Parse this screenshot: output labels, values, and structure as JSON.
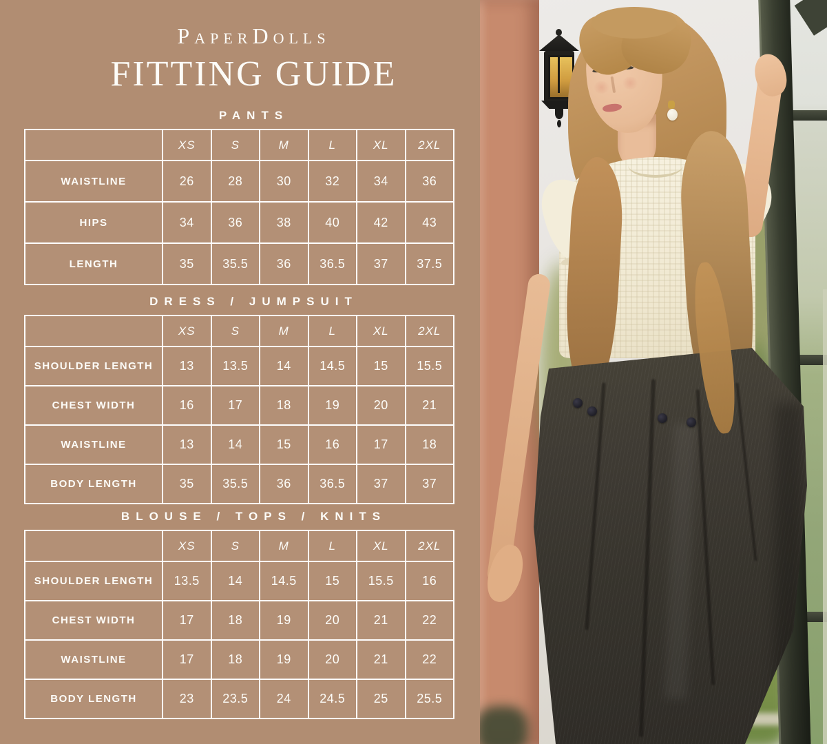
{
  "header": {
    "brand": "PaperDolls",
    "title": "FITTING GUIDE"
  },
  "sizes": [
    "XS",
    "S",
    "M",
    "L",
    "XL",
    "2XL"
  ],
  "tables": [
    {
      "heading": "PANTS",
      "rows": [
        {
          "label": "WAISTLINE",
          "values": [
            "26",
            "28",
            "30",
            "32",
            "34",
            "36"
          ]
        },
        {
          "label": "HIPS",
          "values": [
            "34",
            "36",
            "38",
            "40",
            "42",
            "43"
          ]
        },
        {
          "label": "LENGTH",
          "values": [
            "35",
            "35.5",
            "36",
            "36.5",
            "37",
            "37.5"
          ]
        }
      ]
    },
    {
      "heading": "DRESS / JUMPSUIT",
      "rows": [
        {
          "label": "SHOULDER LENGTH",
          "values": [
            "13",
            "13.5",
            "14",
            "14.5",
            "15",
            "15.5"
          ]
        },
        {
          "label": "CHEST WIDTH",
          "values": [
            "16",
            "17",
            "18",
            "19",
            "20",
            "21"
          ]
        },
        {
          "label": "WAISTLINE",
          "values": [
            "13",
            "14",
            "15",
            "16",
            "17",
            "18"
          ]
        },
        {
          "label": "BODY LENGTH",
          "values": [
            "35",
            "35.5",
            "36",
            "36.5",
            "37",
            "37"
          ]
        }
      ]
    },
    {
      "heading": "BLOUSE / TOPS / KNITS",
      "rows": [
        {
          "label": "SHOULDER LENGTH",
          "values": [
            "13.5",
            "14",
            "14.5",
            "15",
            "15.5",
            "16"
          ]
        },
        {
          "label": "CHEST WIDTH",
          "values": [
            "17",
            "18",
            "19",
            "20",
            "21",
            "22"
          ]
        },
        {
          "label": "WAISTLINE",
          "values": [
            "17",
            "18",
            "19",
            "20",
            "21",
            "22"
          ]
        },
        {
          "label": "BODY LENGTH",
          "values": [
            "23",
            "23.5",
            "24",
            "24.5",
            "25",
            "25.5"
          ]
        }
      ]
    }
  ],
  "palette": {
    "background": "#b18d72",
    "table_border": "#ffffff",
    "text": "#fdfcf8",
    "photo_sky": "#e8e5e1",
    "photo_brick": "#c5886a",
    "photo_foliage": "#7f9448",
    "photo_window_frame": "#3c4134",
    "photo_knit_top": "#f3edda",
    "photo_trousers": "#3b3833",
    "photo_hair": "#bb8f55",
    "photo_skin": "#ecc3a2"
  }
}
